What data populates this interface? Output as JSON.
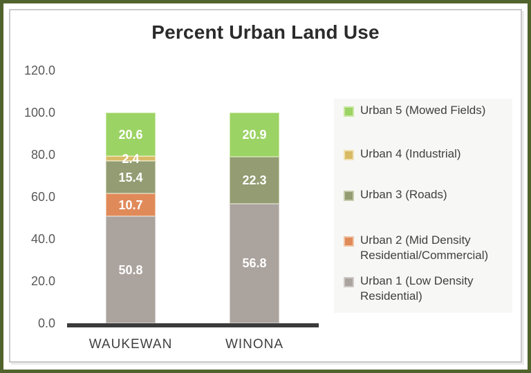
{
  "chart_data": {
    "type": "bar",
    "stacked": true,
    "title": "Percent Urban Land Use",
    "categories": [
      "WAUKEWAN",
      "WINONA"
    ],
    "series": [
      {
        "name": "Urban 1 (Low Density Residential)",
        "color": "#ABA39E",
        "border_tint": "#CFCAC7",
        "values": [
          50.8,
          56.8
        ]
      },
      {
        "name": "Urban 2 (Mid Density Residential/Commercial)",
        "color": "#E08A5A",
        "border_tint": "#F0C5A5",
        "values": [
          10.7,
          0
        ]
      },
      {
        "name": "Urban 3 (Roads)",
        "color": "#939C72",
        "border_tint": "#C5CBAD",
        "values": [
          15.4,
          22.3
        ]
      },
      {
        "name": "Urban 4 (Industrial)",
        "color": "#D9BA66",
        "border_tint": "#F0E2B4",
        "values": [
          2.4,
          0
        ]
      },
      {
        "name": "Urban 5 (Mowed Fields)",
        "color": "#9CD365",
        "border_tint": "#C9E8A1",
        "values": [
          20.6,
          20.9
        ]
      }
    ],
    "ylim": [
      0,
      120
    ],
    "ytick_step": 20,
    "ytick_labels": [
      "0.0",
      "20.0",
      "40.0",
      "60.0",
      "80.0",
      "100.0",
      "120.0"
    ],
    "grid": false,
    "data_labels": true,
    "legend_position": "right"
  },
  "colors": {
    "outer_border": "#51632C",
    "inner_border": "#C9C9C9",
    "axis_line": "#3B3B3B",
    "tick_text": "#595959",
    "category_text": "#3F3F3F",
    "legend_bg": "#F7F7F5",
    "legend_text": "#404040",
    "title_text": "#2B2B2B",
    "label_text": "#FFFFFF"
  }
}
